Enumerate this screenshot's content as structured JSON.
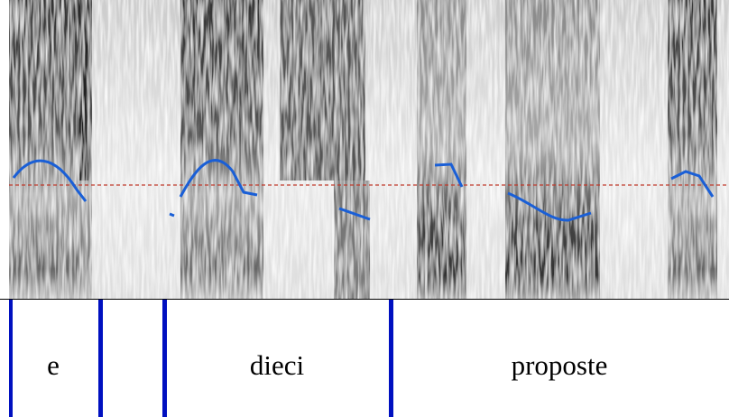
{
  "tier": {
    "words": [
      "e",
      "dieci",
      "proposte"
    ]
  }
}
